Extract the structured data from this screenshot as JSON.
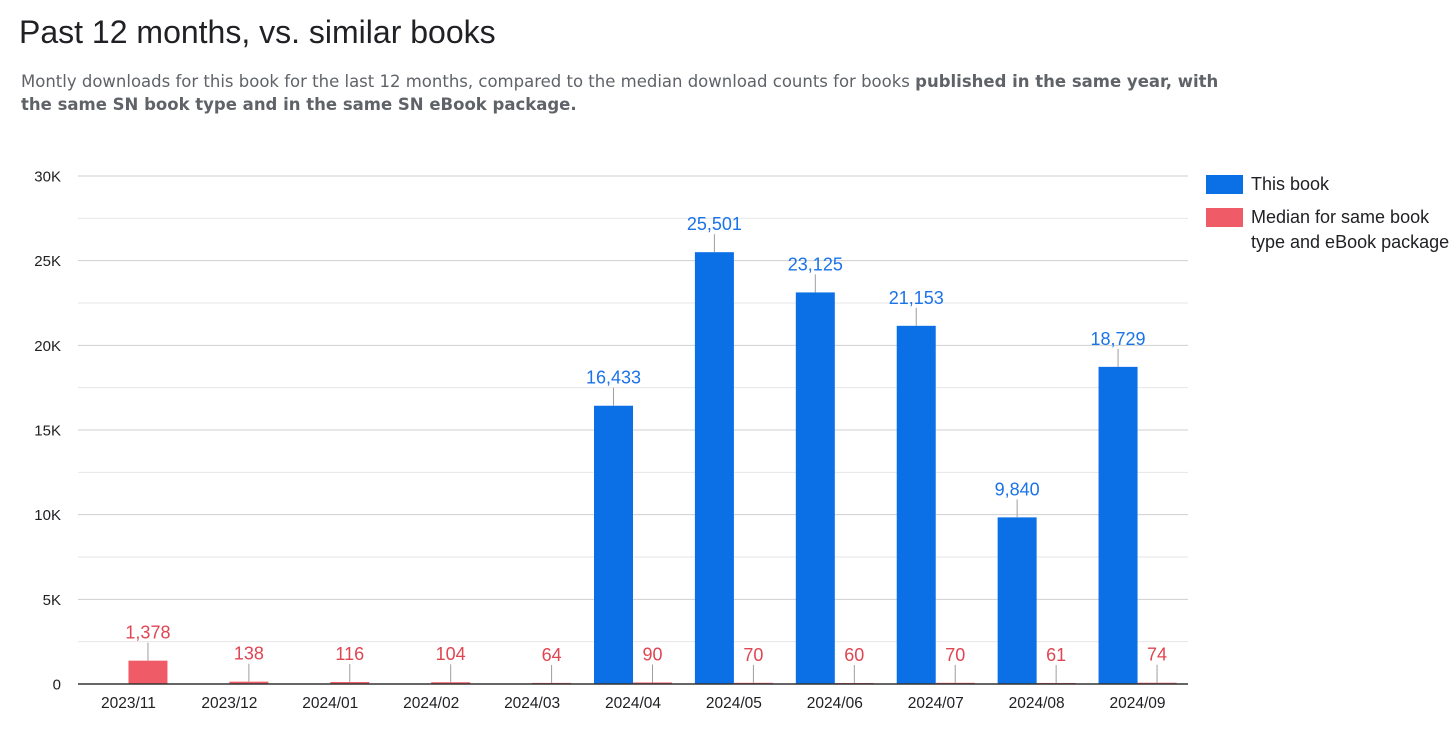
{
  "header": {
    "title": "Past 12 months, vs. similar books",
    "subtitle_plain": "Montly downloads for this book for the last 12 months, compared to the median download counts for books ",
    "subtitle_bold": "published in the same year, with the same SN book type and in the same SN eBook package."
  },
  "legend": {
    "items": [
      {
        "label": "This book",
        "color": "#0b70e6"
      },
      {
        "label": "Median for same book type and eBook package",
        "color": "#ef5b66"
      }
    ]
  },
  "chart_data": {
    "type": "bar",
    "title": "Past 12 months, vs. similar books",
    "categories": [
      "2023/11",
      "2023/12",
      "2024/01",
      "2024/02",
      "2024/03",
      "2024/04",
      "2024/05",
      "2024/06",
      "2024/07",
      "2024/08",
      "2024/09"
    ],
    "series": [
      {
        "name": "This book",
        "color": "#0b70e6",
        "label_color": "#1a73e8",
        "values": [
          0,
          0,
          0,
          0,
          0,
          16433,
          25501,
          23125,
          21153,
          9840,
          18729
        ],
        "labels": [
          null,
          null,
          null,
          null,
          null,
          "16,433",
          "25,501",
          "23,125",
          "21,153",
          "9,840",
          "18,729"
        ]
      },
      {
        "name": "Median for same book type and eBook package",
        "color": "#ef5b66",
        "label_color": "#e04552",
        "values": [
          1378,
          138,
          116,
          104,
          64,
          90,
          70,
          60,
          70,
          61,
          74
        ],
        "labels": [
          "1,378",
          "138",
          "116",
          "104",
          "64",
          "90",
          "70",
          "60",
          "70",
          "61",
          "74"
        ]
      }
    ],
    "yticks": [
      {
        "value": 0,
        "label": "0"
      },
      {
        "value": 5000,
        "label": "5K"
      },
      {
        "value": 10000,
        "label": "10K"
      },
      {
        "value": 15000,
        "label": "15K"
      },
      {
        "value": 20000,
        "label": "20K"
      },
      {
        "value": 25000,
        "label": "25K"
      },
      {
        "value": 30000,
        "label": "30K"
      }
    ],
    "ylim": [
      0,
      30000
    ],
    "grid": true,
    "minor_grid_step": 2500,
    "legend_position": "right",
    "xlabel": "",
    "ylabel": ""
  }
}
